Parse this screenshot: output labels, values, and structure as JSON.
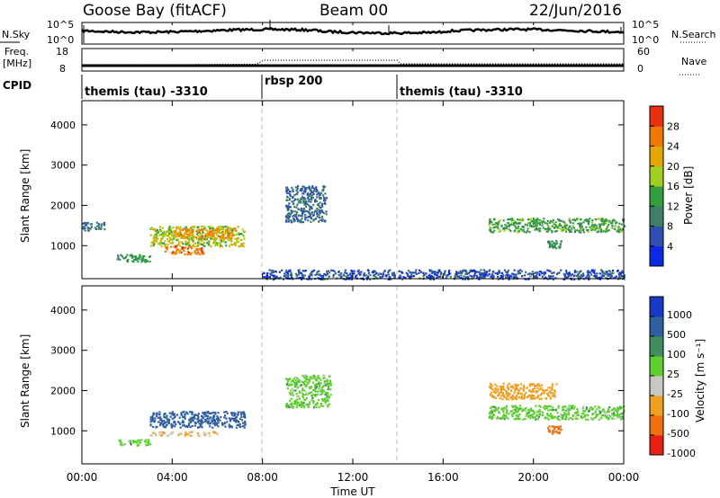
{
  "header": {
    "station": "Goose Bay (fitACF)",
    "beam": "Beam 00",
    "date": "22/Jun/2016"
  },
  "nsky_panel": {
    "left_label": "N.Sky",
    "right_label": "N.Search",
    "ticks": [
      "10^5",
      "10^0"
    ]
  },
  "freq_panel": {
    "left_label_1": "Freq.",
    "left_label_2": "[MHz]",
    "left_ticks": [
      "18",
      "8"
    ],
    "right_label": "Nave",
    "right_ticks": [
      "60",
      "0"
    ]
  },
  "cpid_panel": {
    "label": "CPID",
    "segments": [
      "themis (tau) -3310",
      "rbsp 200",
      "themis (tau) -3310"
    ]
  },
  "power_panel": {
    "ylabel": "Slant Range [km]",
    "yticks": [
      "1000",
      "2000",
      "3000",
      "4000"
    ],
    "colorbar_label": "Power [dB]",
    "colorbar_ticks": [
      "4",
      "8",
      "12",
      "16",
      "20",
      "24",
      "28"
    ],
    "colors": [
      "#0a28e6",
      "#2f4fb0",
      "#3f7f6a",
      "#2f9f3f",
      "#9fcf20",
      "#e6a800",
      "#f07800",
      "#e83010"
    ]
  },
  "velocity_panel": {
    "ylabel": "Slant Range [km]",
    "yticks": [
      "1000",
      "2000",
      "3000",
      "4000"
    ],
    "colorbar_label": "Velocity [m s⁻¹]",
    "colorbar_ticks": [
      "1000",
      "500",
      "100",
      "25",
      "-25",
      "-100",
      "-500",
      "-1000"
    ],
    "colors": [
      "#1838c8",
      "#2f5fa0",
      "#3f8f5a",
      "#5fcf30",
      "#c8c8c0",
      "#f0a020",
      "#f07010",
      "#e82010"
    ]
  },
  "xaxis": {
    "label": "Time UT",
    "ticks": [
      "00:00",
      "04:00",
      "08:00",
      "12:00",
      "16:00",
      "20:00",
      "00:00"
    ]
  },
  "chart_data": {
    "type": "heatmap",
    "title": "Goose Bay (fitACF)",
    "x_range_hours": [
      0,
      24
    ],
    "y_range_km": [
      180,
      4600
    ],
    "mode_change_times_hours": [
      8.0,
      14.0
    ],
    "power_regions": [
      {
        "t": [
          0.0,
          1.0
        ],
        "r": [
          1380,
          1600
        ],
        "power_db": 8
      },
      {
        "t": [
          1.5,
          3.0
        ],
        "r": [
          600,
          800
        ],
        "power_db": 12
      },
      {
        "t": [
          3.0,
          7.2
        ],
        "r": [
          1000,
          1500
        ],
        "power_db": 18
      },
      {
        "t": [
          3.6,
          5.4
        ],
        "r": [
          800,
          1000
        ],
        "power_db": 26
      },
      {
        "t": [
          4.0,
          6.8
        ],
        "r": [
          1200,
          1450
        ],
        "power_db": 24
      },
      {
        "t": [
          9.0,
          10.8
        ],
        "r": [
          1600,
          2500
        ],
        "power_db": 8
      },
      {
        "t": [
          8.0,
          24.0
        ],
        "r": [
          180,
          420
        ],
        "power_db": 6
      },
      {
        "t": [
          18.0,
          24.0
        ],
        "r": [
          1350,
          1700
        ],
        "power_db": 14
      },
      {
        "t": [
          20.6,
          21.2
        ],
        "r": [
          950,
          1150
        ],
        "power_db": 12
      }
    ],
    "velocity_regions": [
      {
        "t": [
          3.0,
          7.2
        ],
        "r": [
          1100,
          1500
        ],
        "velocity": 200
      },
      {
        "t": [
          3.0,
          6.0
        ],
        "r": [
          900,
          1000
        ],
        "velocity": -100
      },
      {
        "t": [
          1.5,
          3.0
        ],
        "r": [
          650,
          800
        ],
        "velocity": 0
      },
      {
        "t": [
          9.0,
          11.0
        ],
        "r": [
          1600,
          2400
        ],
        "velocity": 0
      },
      {
        "t": [
          18.0,
          24.0
        ],
        "r": [
          1300,
          1650
        ],
        "velocity": 0
      },
      {
        "t": [
          18.0,
          21.0
        ],
        "r": [
          1800,
          2200
        ],
        "velocity": -300
      },
      {
        "t": [
          20.6,
          21.2
        ],
        "r": [
          950,
          1150
        ],
        "velocity": -600
      }
    ]
  }
}
